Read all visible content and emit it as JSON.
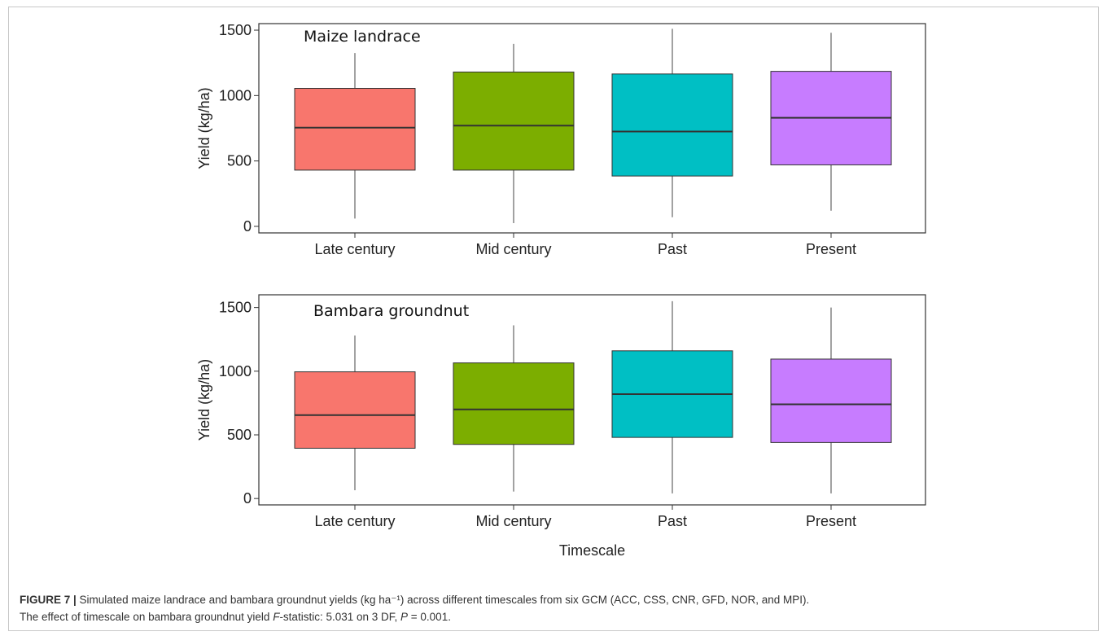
{
  "chart_data": [
    {
      "type": "boxplot",
      "title": "Maize landrace",
      "ylabel": "Yield (kg/ha)",
      "xlabel": "",
      "ylim": [
        -50,
        1550
      ],
      "yticks": [
        0,
        500,
        1000,
        1500
      ],
      "categories": [
        "Late century",
        "Mid century",
        "Past",
        "Present"
      ],
      "colors": [
        "#F8766D",
        "#7CAE00",
        "#00BFC4",
        "#C77CFF"
      ],
      "boxes": [
        {
          "min": 60,
          "q1": 430,
          "median": 755,
          "q3": 1055,
          "max": 1325
        },
        {
          "min": 25,
          "q1": 430,
          "median": 770,
          "q3": 1180,
          "max": 1395
        },
        {
          "min": 70,
          "q1": 385,
          "median": 725,
          "q3": 1165,
          "max": 1510
        },
        {
          "min": 120,
          "q1": 470,
          "median": 830,
          "q3": 1185,
          "max": 1480
        }
      ],
      "grid": false
    },
    {
      "type": "boxplot",
      "title": "Bambara groundnut",
      "ylabel": "Yield (kg/ha)",
      "xlabel": "Timescale",
      "ylim": [
        -50,
        1600
      ],
      "yticks": [
        0,
        500,
        1000,
        1500
      ],
      "categories": [
        "Late century",
        "Mid century",
        "Past",
        "Present"
      ],
      "colors": [
        "#F8766D",
        "#7CAE00",
        "#00BFC4",
        "#C77CFF"
      ],
      "boxes": [
        {
          "min": 65,
          "q1": 395,
          "median": 655,
          "q3": 995,
          "max": 1280
        },
        {
          "min": 55,
          "q1": 425,
          "median": 700,
          "q3": 1065,
          "max": 1360
        },
        {
          "min": 40,
          "q1": 480,
          "median": 820,
          "q3": 1160,
          "max": 1550
        },
        {
          "min": 40,
          "q1": 440,
          "median": 740,
          "q3": 1095,
          "max": 1500
        }
      ],
      "grid": false
    }
  ],
  "caption": {
    "label": "FIGURE 7 |",
    "line1": " Simulated maize landrace and bambara groundnut yields (kg ha⁻¹) across different timescales from six GCM (ACC, CSS, CNR, GFD, NOR, and MPI).",
    "line2_pre": "The effect of timescale on bambara groundnut yield ",
    "line2_f": "F",
    "line2_mid": "-statistic: 5.031 on 3 DF, ",
    "line2_p": "P",
    "line2_post": " = 0.001."
  }
}
